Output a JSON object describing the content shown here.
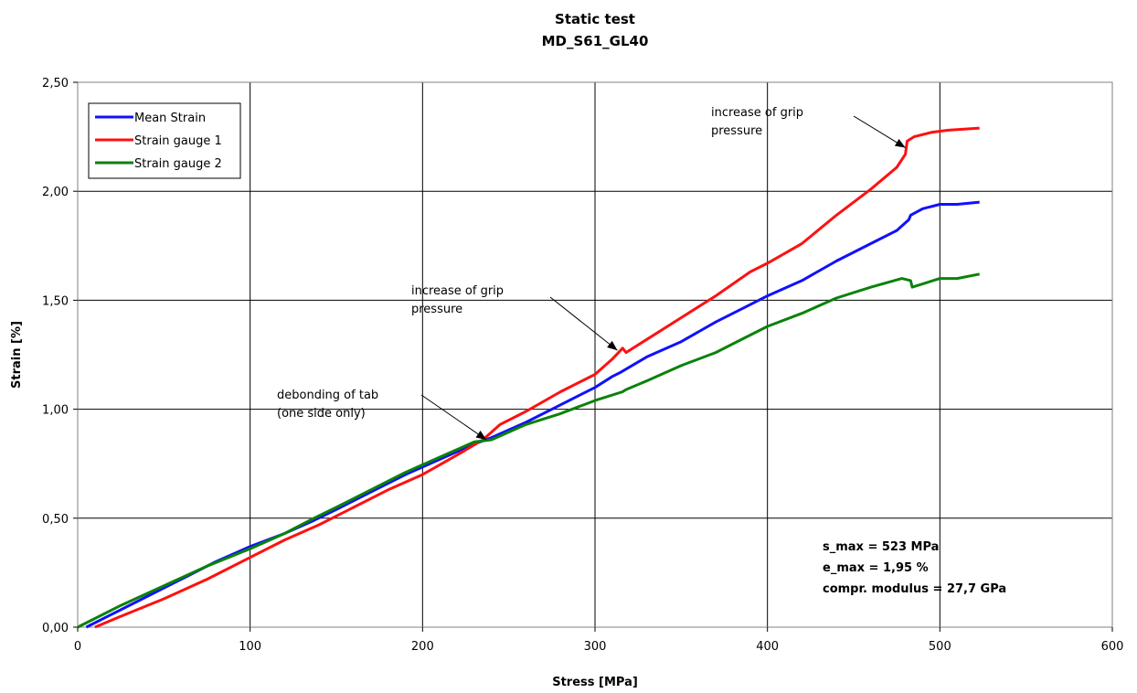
{
  "chart_data": {
    "type": "line",
    "title": "Static test",
    "subtitle": "MD_S61_GL40",
    "xlabel": "Stress [MPa]",
    "ylabel": "Strain [%]",
    "xlim": [
      0,
      600
    ],
    "ylim": [
      0,
      2.5
    ],
    "xticks": [
      0,
      100,
      200,
      300,
      400,
      500,
      600
    ],
    "xtick_labels": [
      "0",
      "100",
      "200",
      "300",
      "400",
      "500",
      "600"
    ],
    "yticks": [
      0,
      0.5,
      1.0,
      1.5,
      2.0,
      2.5
    ],
    "ytick_labels": [
      "0,00",
      "0,50",
      "1,00",
      "1,50",
      "2,00",
      "2,50"
    ],
    "grid": true,
    "legend_position": "top-left",
    "series": [
      {
        "name": "Mean Strain",
        "color": "#1010ff",
        "points": [
          [
            5,
            0.0
          ],
          [
            20,
            0.06
          ],
          [
            40,
            0.14
          ],
          [
            60,
            0.22
          ],
          [
            80,
            0.3
          ],
          [
            100,
            0.37
          ],
          [
            120,
            0.43
          ],
          [
            137,
            0.49
          ],
          [
            150,
            0.54
          ],
          [
            170,
            0.62
          ],
          [
            190,
            0.7
          ],
          [
            210,
            0.77
          ],
          [
            230,
            0.84
          ],
          [
            240,
            0.87
          ],
          [
            260,
            0.94
          ],
          [
            280,
            1.02
          ],
          [
            300,
            1.1
          ],
          [
            310,
            1.15
          ],
          [
            315,
            1.17
          ],
          [
            330,
            1.24
          ],
          [
            350,
            1.31
          ],
          [
            370,
            1.4
          ],
          [
            390,
            1.48
          ],
          [
            400,
            1.52
          ],
          [
            420,
            1.59
          ],
          [
            440,
            1.68
          ],
          [
            460,
            1.76
          ],
          [
            475,
            1.82
          ],
          [
            482,
            1.87
          ],
          [
            483,
            1.89
          ],
          [
            490,
            1.92
          ],
          [
            500,
            1.94
          ],
          [
            510,
            1.94
          ],
          [
            523,
            1.95
          ]
        ]
      },
      {
        "name": "Strain gauge 1",
        "color": "#ff1010",
        "points": [
          [
            10,
            0.0
          ],
          [
            25,
            0.05
          ],
          [
            50,
            0.13
          ],
          [
            75,
            0.22
          ],
          [
            100,
            0.32
          ],
          [
            120,
            0.4
          ],
          [
            140,
            0.47
          ],
          [
            160,
            0.55
          ],
          [
            180,
            0.63
          ],
          [
            200,
            0.7
          ],
          [
            220,
            0.79
          ],
          [
            235,
            0.86
          ],
          [
            245,
            0.93
          ],
          [
            260,
            0.99
          ],
          [
            280,
            1.08
          ],
          [
            300,
            1.16
          ],
          [
            310,
            1.23
          ],
          [
            316,
            1.28
          ],
          [
            318,
            1.26
          ],
          [
            330,
            1.32
          ],
          [
            350,
            1.42
          ],
          [
            370,
            1.52
          ],
          [
            390,
            1.63
          ],
          [
            400,
            1.67
          ],
          [
            420,
            1.76
          ],
          [
            440,
            1.89
          ],
          [
            460,
            2.01
          ],
          [
            475,
            2.11
          ],
          [
            480,
            2.17
          ],
          [
            481,
            2.23
          ],
          [
            485,
            2.25
          ],
          [
            495,
            2.27
          ],
          [
            505,
            2.28
          ],
          [
            523,
            2.29
          ]
        ]
      },
      {
        "name": "Strain gauge 2",
        "color": "#0a820a",
        "points": [
          [
            0,
            0.0
          ],
          [
            25,
            0.1
          ],
          [
            50,
            0.19
          ],
          [
            75,
            0.28
          ],
          [
            100,
            0.36
          ],
          [
            120,
            0.43
          ],
          [
            137,
            0.5
          ],
          [
            150,
            0.55
          ],
          [
            170,
            0.63
          ],
          [
            190,
            0.71
          ],
          [
            210,
            0.78
          ],
          [
            230,
            0.85
          ],
          [
            240,
            0.86
          ],
          [
            260,
            0.93
          ],
          [
            280,
            0.98
          ],
          [
            300,
            1.04
          ],
          [
            316,
            1.08
          ],
          [
            318,
            1.09
          ],
          [
            330,
            1.13
          ],
          [
            350,
            1.2
          ],
          [
            370,
            1.26
          ],
          [
            390,
            1.34
          ],
          [
            400,
            1.38
          ],
          [
            420,
            1.44
          ],
          [
            440,
            1.51
          ],
          [
            460,
            1.56
          ],
          [
            478,
            1.6
          ],
          [
            483,
            1.59
          ],
          [
            484,
            1.56
          ],
          [
            500,
            1.6
          ],
          [
            510,
            1.6
          ],
          [
            523,
            1.62
          ]
        ]
      }
    ],
    "annotations": [
      {
        "text_lines": [
          "debonding of tab",
          "(one side only)"
        ],
        "arrow_to": [
          237,
          0.86
        ]
      },
      {
        "text_lines": [
          "increase of grip",
          "pressure"
        ],
        "arrow_to": [
          313,
          1.27
        ]
      },
      {
        "text_lines": [
          "increase of grip",
          "pressure"
        ],
        "arrow_to": [
          480,
          2.2
        ]
      }
    ],
    "stats": [
      "s_max = 523 MPa",
      "e_max = 1,95 %",
      "compr. modulus = 27,7 GPa"
    ]
  }
}
